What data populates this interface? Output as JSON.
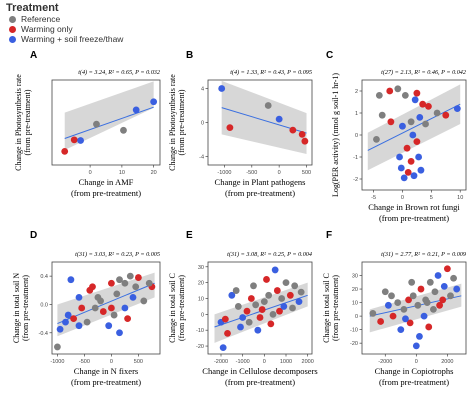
{
  "legend": {
    "title": "Treatment",
    "items": [
      {
        "label": "Reference",
        "color": "#7f7f7f"
      },
      {
        "label": "Warming only",
        "color": "#d62728"
      },
      {
        "label": "Warming + soil freeze/thaw",
        "color": "#3a5fe0"
      }
    ]
  },
  "chart_data": [
    {
      "type": "scatter",
      "panel": "A",
      "stat": "t(4) = 3.24, R² = 0.65, P = 0.032",
      "xlabel": "Change in AMF",
      "xlabel2": "(from pre-treatment)",
      "ylabel": "Change in Photosynthesis rate",
      "ylabel2": "(from pre-treatment)",
      "xlim": [
        -12,
        22
      ],
      "ylim": [
        -5.5,
        7
      ],
      "xticks": [
        0,
        10,
        20
      ],
      "xtick_labels": [
        "0",
        "10",
        "20"
      ],
      "yticks": [],
      "ytick_labels": [],
      "band_top": [
        2.2,
        6.8
      ],
      "band_bottom": [
        -3.3,
        2.9
      ],
      "points": [
        {
          "x": -8,
          "y": -3.5,
          "g": 1
        },
        {
          "x": -5,
          "y": -1.8,
          "g": 1
        },
        {
          "x": -3,
          "y": -1.9,
          "g": 2
        },
        {
          "x": 2,
          "y": 0.5,
          "g": 0
        },
        {
          "x": 10.5,
          "y": -0.4,
          "g": 0
        },
        {
          "x": 14.5,
          "y": 2.6,
          "g": 2
        },
        {
          "x": 20,
          "y": 3.8,
          "g": 2
        }
      ],
      "fit": {
        "x": [
          -8,
          20
        ],
        "y": [
          -1.6,
          3.0
        ]
      }
    },
    {
      "type": "scatter",
      "panel": "B",
      "stat": "t(4) = 1.33, R² = 0.43, P = 0.095",
      "xlabel": "Change in Plant pathogens",
      "xlabel2": "(from pre-treatment)",
      "ylabel": "Change in Photosynthesis rate",
      "ylabel2": "(from pre-treatment)",
      "xlim": [
        -1300,
        600
      ],
      "ylim": [
        -5,
        5
      ],
      "xticks": [
        -1000,
        -500,
        0,
        500
      ],
      "xtick_labels": [
        "-1000",
        "-500",
        "0",
        "500"
      ],
      "yticks": [
        -4,
        0,
        4
      ],
      "ytick_labels": [
        "-4",
        "0",
        "4"
      ],
      "band_top": [
        4.9,
        1.1
      ],
      "band_bottom": [
        -1.4,
        -3.7
      ],
      "points": [
        {
          "x": -1050,
          "y": 4.0,
          "g": 2
        },
        {
          "x": -900,
          "y": -0.6,
          "g": 1
        },
        {
          "x": -200,
          "y": 2.0,
          "g": 0
        },
        {
          "x": 0,
          "y": 0.4,
          "g": 2
        },
        {
          "x": 250,
          "y": -0.9,
          "g": 1
        },
        {
          "x": 420,
          "y": -1.4,
          "g": 1
        },
        {
          "x": 470,
          "y": -2.2,
          "g": 1
        }
      ],
      "fit": {
        "x": [
          -1050,
          500
        ],
        "y": [
          1.75,
          -1.25
        ]
      }
    },
    {
      "type": "scatter",
      "panel": "C",
      "stat": "t(27) = 2.13, R² = 0.46, P = 0.042",
      "xlabel": "Change in Brown rot fungi",
      "xlabel2": "(from pre-treatment)",
      "ylabel": "Log(PER activity) (nmol g soil-1 hr-1)",
      "ylabel2": "",
      "xlim": [
        -7,
        11
      ],
      "ylim": [
        -2.5,
        2.5
      ],
      "xticks": [
        -5,
        0,
        5,
        10
      ],
      "xtick_labels": [
        "-5",
        "0",
        "5",
        "10"
      ],
      "yticks": [
        -2,
        -1,
        0,
        1,
        2
      ],
      "ytick_labels": [
        "-2",
        "-1",
        "0",
        "1",
        "2"
      ],
      "band_top": [
        0.1,
        2.3
      ],
      "band_bottom": [
        -1.6,
        0.5
      ],
      "points": [
        {
          "x": -4,
          "y": 1.8,
          "g": 0
        },
        {
          "x": -2.2,
          "y": 2.0,
          "g": 1
        },
        {
          "x": -0.8,
          "y": 2.1,
          "g": 0
        },
        {
          "x": 0.5,
          "y": 1.8,
          "g": 0
        },
        {
          "x": 2.5,
          "y": 1.9,
          "g": 1
        },
        {
          "x": 2.2,
          "y": 1.6,
          "g": 2
        },
        {
          "x": 4.5,
          "y": 1.3,
          "g": 1
        },
        {
          "x": 6,
          "y": 1.0,
          "g": 0
        },
        {
          "x": -3.5,
          "y": 0.9,
          "g": 0
        },
        {
          "x": -2,
          "y": 0.6,
          "g": 1
        },
        {
          "x": 0,
          "y": 0.4,
          "g": 2
        },
        {
          "x": 1.5,
          "y": 0.6,
          "g": 0
        },
        {
          "x": 3,
          "y": 0.8,
          "g": 2
        },
        {
          "x": 4,
          "y": 0.5,
          "g": 0
        },
        {
          "x": 1.8,
          "y": 0.0,
          "g": 2
        },
        {
          "x": 2.5,
          "y": -0.3,
          "g": 1
        },
        {
          "x": 0.8,
          "y": -0.6,
          "g": 1
        },
        {
          "x": -0.5,
          "y": -1.0,
          "g": 2
        },
        {
          "x": 1.5,
          "y": -1.2,
          "g": 1
        },
        {
          "x": 2.8,
          "y": -1.0,
          "g": 2
        },
        {
          "x": -0.2,
          "y": -1.5,
          "g": 2
        },
        {
          "x": 1,
          "y": -1.7,
          "g": 1
        },
        {
          "x": 3.2,
          "y": -1.6,
          "g": 2
        },
        {
          "x": 2,
          "y": -1.85,
          "g": 2
        },
        {
          "x": 7.5,
          "y": 0.9,
          "g": 1
        },
        {
          "x": 9.5,
          "y": 1.2,
          "g": 2
        },
        {
          "x": -4.5,
          "y": -0.2,
          "g": 0
        },
        {
          "x": 0.3,
          "y": -1.95,
          "g": 2
        },
        {
          "x": 3.5,
          "y": 1.4,
          "g": 1
        }
      ],
      "fit": {
        "x": [
          -6,
          10
        ],
        "y": [
          -0.7,
          1.4
        ]
      }
    },
    {
      "type": "scatter",
      "panel": "D",
      "stat": "t(31) = 3.03, R² = 0.23, P = 0.005",
      "xlabel": "Change in N fixers",
      "xlabel2": "(from pre-treatment)",
      "ylabel": "Change in total soil N",
      "ylabel2": "(from pre-treatment)",
      "xlim": [
        -1100,
        900
      ],
      "ylim": [
        -0.7,
        0.6
      ],
      "xticks": [
        -1000,
        -500,
        0,
        500
      ],
      "xtick_labels": [
        "-1000",
        "-500",
        "0",
        "500"
      ],
      "yticks": [
        -0.4,
        0.0,
        0.4
      ],
      "ytick_labels": [
        "-0.4",
        "0.0",
        "0.4"
      ],
      "band_top": [
        0.0,
        0.45
      ],
      "band_bottom": [
        -0.45,
        0.1
      ],
      "points": [
        {
          "x": -750,
          "y": 0.35,
          "g": 2
        },
        {
          "x": -600,
          "y": 0.1,
          "g": 2
        },
        {
          "x": -400,
          "y": 0.2,
          "g": 1
        },
        {
          "x": -200,
          "y": 0.05,
          "g": 0
        },
        {
          "x": 0,
          "y": 0.3,
          "g": 1
        },
        {
          "x": 150,
          "y": 0.35,
          "g": 0
        },
        {
          "x": 250,
          "y": 0.3,
          "g": 0
        },
        {
          "x": 350,
          "y": 0.4,
          "g": 0
        },
        {
          "x": 500,
          "y": 0.38,
          "g": 1
        },
        {
          "x": 750,
          "y": 0.25,
          "g": 1
        },
        {
          "x": -950,
          "y": -0.35,
          "g": 2
        },
        {
          "x": -800,
          "y": -0.15,
          "g": 2
        },
        {
          "x": -700,
          "y": -0.2,
          "g": 1
        },
        {
          "x": -550,
          "y": -0.05,
          "g": 1
        },
        {
          "x": -450,
          "y": -0.25,
          "g": 0
        },
        {
          "x": -300,
          "y": -0.05,
          "g": 0
        },
        {
          "x": -150,
          "y": -0.1,
          "g": 1
        },
        {
          "x": -50,
          "y": -0.3,
          "g": 2
        },
        {
          "x": 50,
          "y": -0.15,
          "g": 0
        },
        {
          "x": 150,
          "y": -0.4,
          "g": 2
        },
        {
          "x": 300,
          "y": -0.2,
          "g": 1
        },
        {
          "x": 400,
          "y": 0.1,
          "g": 2
        },
        {
          "x": 600,
          "y": 0.05,
          "g": 0
        },
        {
          "x": -350,
          "y": 0.25,
          "g": 1
        },
        {
          "x": 100,
          "y": 0.15,
          "g": 0
        },
        {
          "x": -600,
          "y": -0.3,
          "g": 2
        },
        {
          "x": 250,
          "y": -0.05,
          "g": 2
        },
        {
          "x": 450,
          "y": 0.25,
          "g": 0
        },
        {
          "x": -850,
          "y": -0.25,
          "g": 2
        },
        {
          "x": 0,
          "y": -0.05,
          "g": 1
        },
        {
          "x": 700,
          "y": 0.3,
          "g": 0
        },
        {
          "x": -1000,
          "y": -0.6,
          "g": 0
        },
        {
          "x": -250,
          "y": 0.1,
          "g": 0
        }
      ],
      "fit": {
        "x": [
          -1000,
          800
        ],
        "y": [
          -0.27,
          0.3
        ]
      }
    },
    {
      "type": "scatter",
      "panel": "E",
      "stat": "t(31) = 3.08, R² = 0.25, P = 0.004",
      "xlabel": "Change in Cellulose decomposers",
      "xlabel2": "(from pre-treatment)",
      "ylabel": "Change in total soil C",
      "ylabel2": "(from pre-treatment)",
      "xlim": [
        -2600,
        2200
      ],
      "ylim": [
        -25,
        33
      ],
      "xticks": [
        -2000,
        -1000,
        0,
        1000,
        2000
      ],
      "xtick_labels": [
        "-2000",
        "-1000",
        "0",
        "1000",
        "2000"
      ],
      "yticks": [
        -20,
        -10,
        0,
        10,
        20,
        30
      ],
      "ytick_labels": [
        "-20",
        "-10",
        "0",
        "10",
        "20",
        "30"
      ],
      "band_top": [
        0,
        20
      ],
      "band_bottom": [
        -18,
        5
      ],
      "points": [
        {
          "x": -2000,
          "y": -5,
          "g": 2
        },
        {
          "x": -1800,
          "y": -3,
          "g": 1
        },
        {
          "x": -1500,
          "y": 12,
          "g": 2
        },
        {
          "x": -1200,
          "y": 5,
          "g": 0
        },
        {
          "x": -1000,
          "y": -2,
          "g": 2
        },
        {
          "x": -800,
          "y": 2,
          "g": 1
        },
        {
          "x": -600,
          "y": 10,
          "g": 1
        },
        {
          "x": -400,
          "y": 6,
          "g": 0
        },
        {
          "x": -200,
          "y": -2,
          "g": 1
        },
        {
          "x": 0,
          "y": 8,
          "g": 0
        },
        {
          "x": 200,
          "y": 12,
          "g": 0
        },
        {
          "x": 400,
          "y": 0,
          "g": 0
        },
        {
          "x": 600,
          "y": 15,
          "g": 1
        },
        {
          "x": 800,
          "y": 10,
          "g": 0
        },
        {
          "x": 1000,
          "y": 20,
          "g": 0
        },
        {
          "x": 1200,
          "y": 12,
          "g": 1
        },
        {
          "x": 1400,
          "y": 18,
          "g": 0
        },
        {
          "x": 1600,
          "y": 8,
          "g": 2
        },
        {
          "x": -1700,
          "y": -12,
          "g": 1
        },
        {
          "x": -1100,
          "y": -8,
          "g": 2
        },
        {
          "x": -300,
          "y": -10,
          "g": 2
        },
        {
          "x": 300,
          "y": -6,
          "g": 1
        },
        {
          "x": 700,
          "y": 2,
          "g": 1
        },
        {
          "x": 1300,
          "y": 4,
          "g": 0
        },
        {
          "x": -500,
          "y": 18,
          "g": 0
        },
        {
          "x": 100,
          "y": 22,
          "g": 1
        },
        {
          "x": -1300,
          "y": 15,
          "g": 0
        },
        {
          "x": 900,
          "y": 5,
          "g": 2
        },
        {
          "x": -700,
          "y": -5,
          "g": 0
        },
        {
          "x": 1700,
          "y": 14,
          "g": 0
        },
        {
          "x": -1900,
          "y": -21,
          "g": 2
        },
        {
          "x": 500,
          "y": 28,
          "g": 2
        },
        {
          "x": -100,
          "y": 3,
          "g": 1
        }
      ],
      "fit": {
        "x": [
          -2300,
          2000
        ],
        "y": [
          -8,
          12
        ]
      }
    },
    {
      "type": "scatter",
      "panel": "F",
      "stat": "t(31) = 2.77, R² = 0.21, P = 0.009",
      "xlabel": "Change in Copiotrophs",
      "xlabel2": "(from pre-treatment)",
      "ylabel": "Change in total soil C",
      "ylabel2": "(from pre-treatment)",
      "xlim": [
        -3500,
        3200
      ],
      "ylim": [
        -28,
        40
      ],
      "xticks": [
        -2000,
        0,
        2000
      ],
      "xtick_labels": [
        "-2000",
        "0",
        "2000"
      ],
      "yticks": [
        -20,
        -10,
        0,
        10,
        20,
        30
      ],
      "ytick_labels": [
        "-20",
        "-10",
        "0",
        "10",
        "20",
        "30"
      ],
      "band_top": [
        5,
        24
      ],
      "band_bottom": [
        -12,
        7
      ],
      "points": [
        {
          "x": -2800,
          "y": 2,
          "g": 0
        },
        {
          "x": -2300,
          "y": -4,
          "g": 1
        },
        {
          "x": -1800,
          "y": 8,
          "g": 2
        },
        {
          "x": -1500,
          "y": 0,
          "g": 1
        },
        {
          "x": -1200,
          "y": 10,
          "g": 0
        },
        {
          "x": -800,
          "y": 5,
          "g": 0
        },
        {
          "x": -500,
          "y": 12,
          "g": 1
        },
        {
          "x": -200,
          "y": 15,
          "g": 0
        },
        {
          "x": 100,
          "y": 8,
          "g": 0
        },
        {
          "x": 300,
          "y": 20,
          "g": 1
        },
        {
          "x": 600,
          "y": 12,
          "g": 0
        },
        {
          "x": 900,
          "y": 25,
          "g": 0
        },
        {
          "x": 1200,
          "y": 18,
          "g": 0
        },
        {
          "x": 1500,
          "y": 8,
          "g": 1
        },
        {
          "x": 1800,
          "y": 22,
          "g": 2
        },
        {
          "x": 2200,
          "y": 15,
          "g": 0
        },
        {
          "x": 2600,
          "y": 20,
          "g": 2
        },
        {
          "x": -1000,
          "y": -10,
          "g": 2
        },
        {
          "x": -400,
          "y": -5,
          "g": 1
        },
        {
          "x": 200,
          "y": -15,
          "g": 2
        },
        {
          "x": 500,
          "y": 0,
          "g": 2
        },
        {
          "x": 800,
          "y": -8,
          "g": 1
        },
        {
          "x": 1100,
          "y": 5,
          "g": 0
        },
        {
          "x": 1400,
          "y": 30,
          "g": 2
        },
        {
          "x": -1600,
          "y": 15,
          "g": 0
        },
        {
          "x": -300,
          "y": 25,
          "g": 0
        },
        {
          "x": 0,
          "y": -22,
          "g": 2
        },
        {
          "x": 2000,
          "y": 35,
          "g": 1
        },
        {
          "x": -2000,
          "y": 18,
          "g": 0
        },
        {
          "x": 700,
          "y": 10,
          "g": 0
        },
        {
          "x": 1700,
          "y": 12,
          "g": 1
        },
        {
          "x": -700,
          "y": -2,
          "g": 2
        },
        {
          "x": 2400,
          "y": 28,
          "g": 0
        }
      ],
      "fit": {
        "x": [
          -3000,
          2900
        ],
        "y": [
          0,
          15
        ]
      }
    }
  ]
}
